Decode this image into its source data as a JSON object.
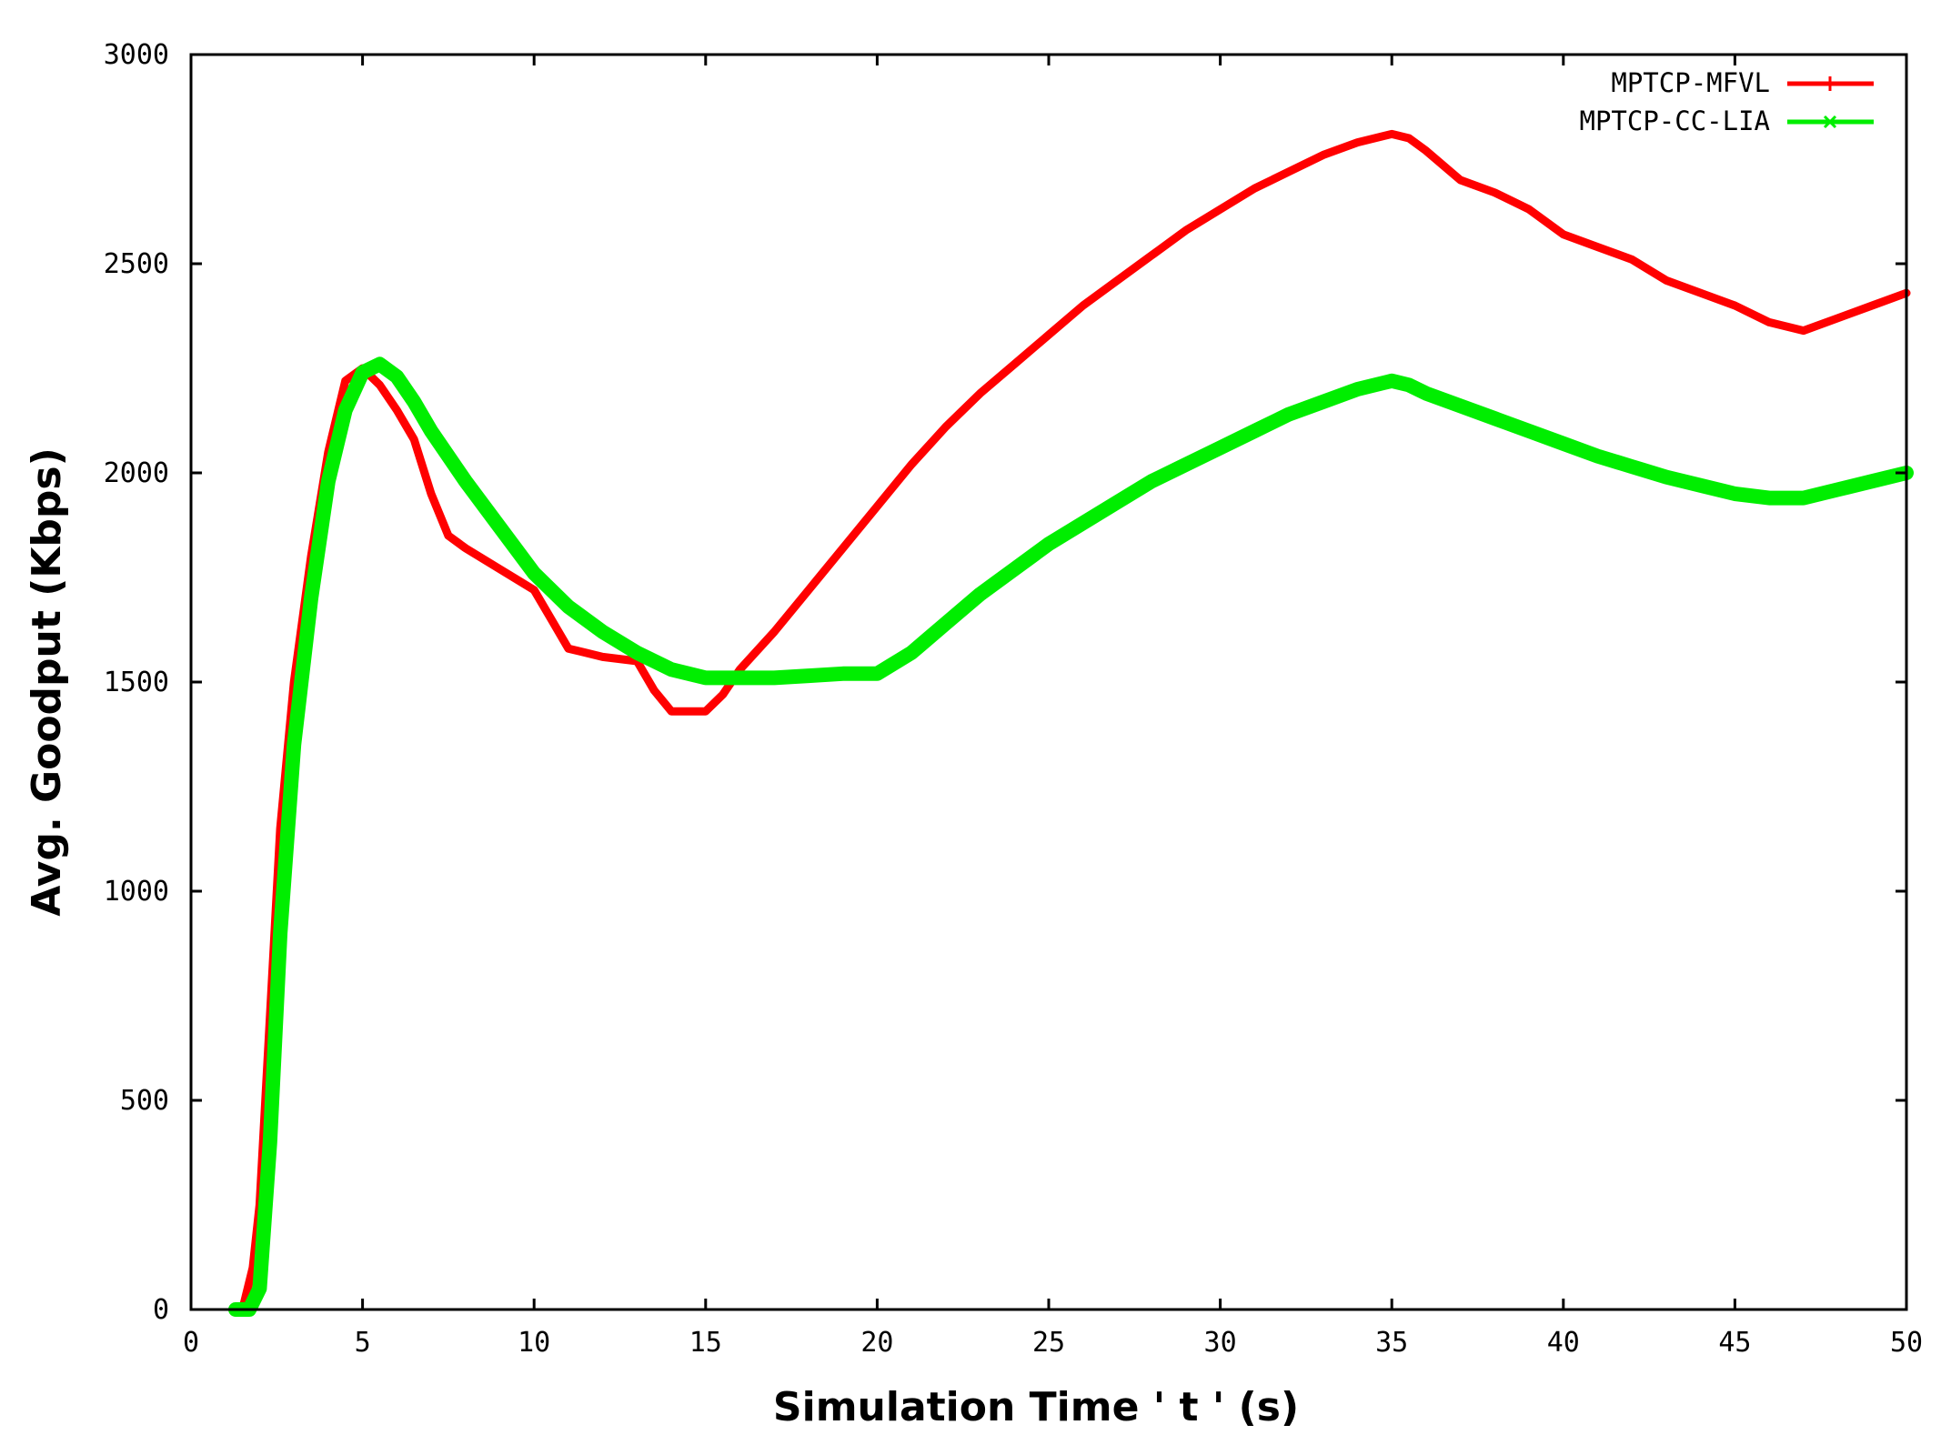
{
  "chart_data": {
    "type": "line",
    "title": "",
    "xlabel": "Simulation Time ' t ' (s)",
    "ylabel": "Avg. Goodput (Kbps)",
    "xlim": [
      0,
      50
    ],
    "ylim": [
      0,
      3000
    ],
    "xticks": [
      0,
      5,
      10,
      15,
      20,
      25,
      30,
      35,
      40,
      45,
      50
    ],
    "yticks": [
      0,
      500,
      1000,
      1500,
      2000,
      2500,
      3000
    ],
    "grid": false,
    "legend_position": "top-right",
    "series": [
      {
        "name": "MPTCP-MFVL",
        "color": "#ff0000",
        "marker": "+",
        "x": [
          1.5,
          1.8,
          2.0,
          2.3,
          2.6,
          3.0,
          3.5,
          4.0,
          4.5,
          5.0,
          5.5,
          6.0,
          6.5,
          7.0,
          7.5,
          8.0,
          9.0,
          10.0,
          10.5,
          11.0,
          11.5,
          12.0,
          13.0,
          13.5,
          14.0,
          14.5,
          15.0,
          15.5,
          16.0,
          17.0,
          18.0,
          19.0,
          20.0,
          21.0,
          22.0,
          23.0,
          24.0,
          25.0,
          26.0,
          27.0,
          28.0,
          29.0,
          30.0,
          31.0,
          32.0,
          33.0,
          34.0,
          35.0,
          35.5,
          36.0,
          37.0,
          38.0,
          39.0,
          40.0,
          41.0,
          42.0,
          43.0,
          44.0,
          45.0,
          46.0,
          47.0,
          48.0,
          49.0,
          50.0
        ],
        "y": [
          0,
          100,
          250,
          700,
          1150,
          1500,
          1800,
          2050,
          2220,
          2250,
          2210,
          2150,
          2080,
          1950,
          1850,
          1820,
          1770,
          1720,
          1650,
          1580,
          1570,
          1560,
          1550,
          1480,
          1430,
          1430,
          1430,
          1470,
          1530,
          1620,
          1720,
          1820,
          1920,
          2020,
          2110,
          2190,
          2260,
          2330,
          2400,
          2460,
          2520,
          2580,
          2630,
          2680,
          2720,
          2760,
          2790,
          2810,
          2800,
          2770,
          2700,
          2670,
          2630,
          2570,
          2540,
          2510,
          2460,
          2430,
          2400,
          2360,
          2340,
          2370,
          2400,
          2430
        ]
      },
      {
        "name": "MPTCP-CC-LIA",
        "color": "#00ee00",
        "marker": "x",
        "x": [
          1.3,
          1.7,
          2.0,
          2.3,
          2.6,
          3.0,
          3.5,
          4.0,
          4.5,
          5.0,
          5.5,
          6.0,
          6.5,
          7.0,
          8.0,
          9.0,
          10.0,
          11.0,
          12.0,
          13.0,
          14.0,
          15.0,
          16.0,
          17.0,
          18.0,
          19.0,
          20.0,
          21.0,
          22.0,
          23.0,
          24.0,
          25.0,
          26.0,
          27.0,
          28.0,
          29.0,
          30.0,
          31.0,
          32.0,
          33.0,
          34.0,
          35.0,
          35.5,
          36.0,
          37.0,
          38.0,
          39.0,
          40.0,
          41.0,
          42.0,
          43.0,
          44.0,
          45.0,
          46.0,
          47.0,
          48.0,
          49.0,
          50.0
        ],
        "y": [
          0,
          0,
          50,
          400,
          900,
          1350,
          1700,
          1980,
          2150,
          2240,
          2260,
          2230,
          2170,
          2100,
          1980,
          1870,
          1760,
          1680,
          1620,
          1570,
          1530,
          1510,
          1510,
          1510,
          1515,
          1520,
          1520,
          1570,
          1640,
          1710,
          1770,
          1830,
          1880,
          1930,
          1980,
          2020,
          2060,
          2100,
          2140,
          2170,
          2200,
          2220,
          2210,
          2190,
          2160,
          2130,
          2100,
          2070,
          2040,
          2015,
          1990,
          1970,
          1950,
          1940,
          1940,
          1960,
          1980,
          2000
        ]
      }
    ]
  }
}
